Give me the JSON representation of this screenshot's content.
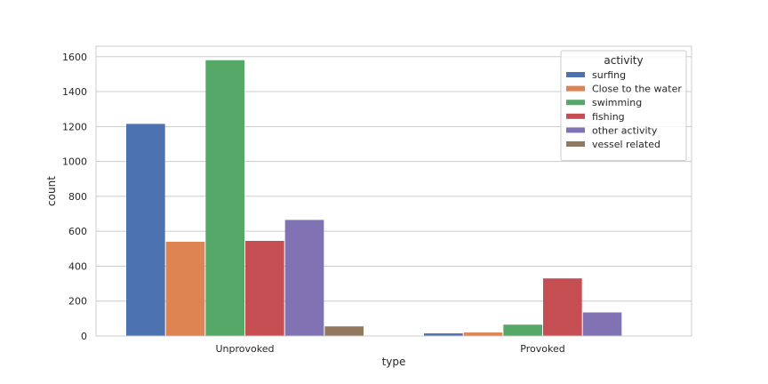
{
  "chart_data": {
    "type": "bar",
    "categories": [
      "Unprovoked",
      "Provoked"
    ],
    "series": [
      {
        "name": "surfing",
        "values": [
          1215,
          15
        ]
      },
      {
        "name": "Close to the water",
        "values": [
          540,
          20
        ]
      },
      {
        "name": "swimming",
        "values": [
          1580,
          65
        ]
      },
      {
        "name": "fishing",
        "values": [
          545,
          330
        ]
      },
      {
        "name": "other activity",
        "values": [
          665,
          135
        ]
      },
      {
        "name": "vessel related",
        "values": [
          55,
          0
        ]
      }
    ],
    "xlabel": "type",
    "ylabel": "count",
    "ylim": [
      0,
      1660
    ],
    "yticks": [
      0,
      200,
      400,
      600,
      800,
      1000,
      1200,
      1400,
      1600
    ],
    "grid": true,
    "legend": {
      "title": "activity",
      "placement": "top-right"
    },
    "colors": [
      "#4c72b0",
      "#dd8452",
      "#55a868",
      "#c44e52",
      "#8172b3",
      "#937860"
    ]
  }
}
